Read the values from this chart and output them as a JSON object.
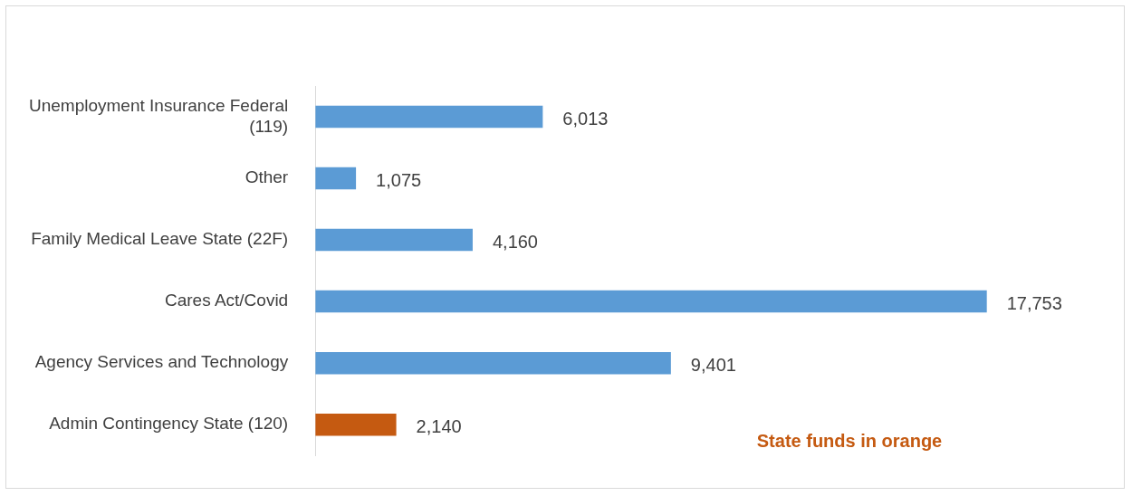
{
  "chart_data": {
    "type": "bar",
    "orientation": "horizontal",
    "categories": [
      "Unemployment Insurance Federal (119)",
      "Other",
      "Family Medical Leave State (22F)",
      "Cares Act/Covid",
      "Agency Services and Technology",
      "Admin Contingency State (120)"
    ],
    "values": [
      6013,
      1075,
      4160,
      17753,
      9401,
      2140
    ],
    "colors": [
      "#5b9bd5",
      "#5b9bd5",
      "#5b9bd5",
      "#5b9bd5",
      "#5b9bd5",
      "#c55a11"
    ],
    "value_labels": [
      "6,013",
      "1,075",
      "4,160",
      "17,753",
      "9,401",
      "2,140"
    ],
    "legend": false,
    "tick_labels": "y",
    "annotations": [
      "State funds in orange"
    ]
  }
}
